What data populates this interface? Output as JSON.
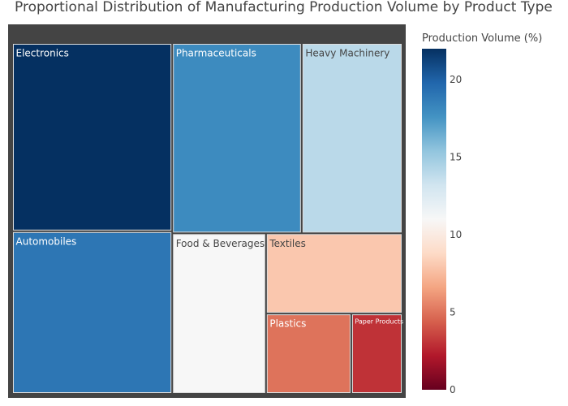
{
  "chart_data": {
    "type": "treemap",
    "title": "Proportional Distribution of Manufacturing Production Volume by Product Type",
    "colorbar": {
      "title": "Production Volume (%)",
      "range": [
        0,
        22
      ],
      "ticks": [
        0,
        5,
        10,
        15,
        20
      ],
      "colorscale": "RdBu"
    },
    "items": [
      {
        "label": "Electronics",
        "value": 22
      },
      {
        "label": "Automobiles",
        "value": 19
      },
      {
        "label": "Pharmaceuticals",
        "value": 18
      },
      {
        "label": "Heavy Machinery",
        "value": 14
      },
      {
        "label": "Food & Beverages",
        "value": 11
      },
      {
        "label": "Textiles",
        "value": 8
      },
      {
        "label": "Plastics",
        "value": 5
      },
      {
        "label": "Paper Products",
        "value": 3
      }
    ]
  }
}
